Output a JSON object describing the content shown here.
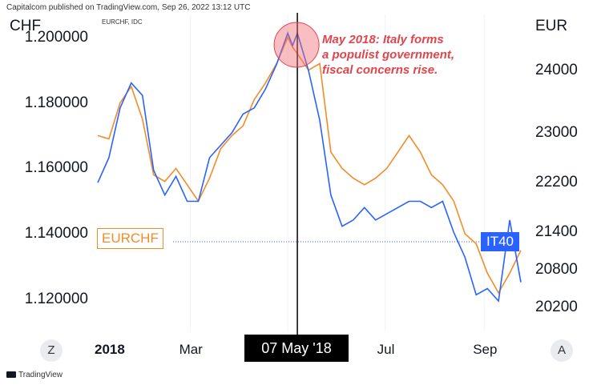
{
  "header": {
    "publisher": "Capitalcom published on TradingView.com, Sep 26, 2022 13:12 UTC",
    "symbol": "EURCHF, IDC"
  },
  "left_axis_unit": "CHF",
  "right_axis_unit": "EUR",
  "annotation": [
    "May 2018: Italy forms",
    "a populist government,",
    "fiscal concerns rise."
  ],
  "crosshair_date": "07 May '18",
  "nav": {
    "left": "Z",
    "right": "A"
  },
  "footer": {
    "brand": "TradingView"
  },
  "colors": {
    "eurchf": "#f28c28",
    "it40": "#2962ff",
    "annotation": "#e0454c",
    "crosshair": "#000000"
  },
  "chart_data": {
    "type": "line",
    "x_ticks": [
      "2018",
      "Mar",
      "May",
      "Jul",
      "Sep"
    ],
    "left_axis": {
      "ticks": [
        "1.200000",
        "1.180000",
        "1.160000",
        "1.140000",
        "1.120000"
      ],
      "range": [
        1.11,
        1.207
      ]
    },
    "right_axis": {
      "ticks": [
        "24000",
        "23000",
        "22200",
        "21400",
        "20800",
        "20200"
      ],
      "range": [
        19800,
        24900
      ]
    },
    "highlight_date": "2018-05-07",
    "series": [
      {
        "name": "EURCHF",
        "axis": "left",
        "last_value_label": "EURCHF",
        "x": [
          "2018-01-02",
          "2018-01-09",
          "2018-01-16",
          "2018-01-23",
          "2018-01-30",
          "2018-02-06",
          "2018-02-13",
          "2018-02-20",
          "2018-02-27",
          "2018-03-06",
          "2018-03-13",
          "2018-03-20",
          "2018-03-27",
          "2018-04-03",
          "2018-04-10",
          "2018-04-17",
          "2018-04-24",
          "2018-05-01",
          "2018-05-04",
          "2018-05-07",
          "2018-05-14",
          "2018-05-21",
          "2018-05-28",
          "2018-06-04",
          "2018-06-11",
          "2018-06-18",
          "2018-06-25",
          "2018-07-02",
          "2018-07-09",
          "2018-07-16",
          "2018-07-23",
          "2018-07-30",
          "2018-08-06",
          "2018-08-13",
          "2018-08-20",
          "2018-08-27",
          "2018-09-03",
          "2018-09-10",
          "2018-09-17",
          "2018-09-24"
        ],
        "values": [
          1.17,
          1.169,
          1.18,
          1.185,
          1.175,
          1.158,
          1.156,
          1.16,
          1.155,
          1.15,
          1.157,
          1.166,
          1.17,
          1.173,
          1.181,
          1.186,
          1.192,
          1.2,
          1.197,
          1.195,
          1.19,
          1.192,
          1.165,
          1.16,
          1.157,
          1.155,
          1.157,
          1.16,
          1.165,
          1.17,
          1.165,
          1.158,
          1.155,
          1.15,
          1.14,
          1.137,
          1.128,
          1.122,
          1.128,
          1.135
        ]
      },
      {
        "name": "IT40",
        "axis": "right",
        "last_value_label": "IT40",
        "x": [
          "2018-01-02",
          "2018-01-09",
          "2018-01-16",
          "2018-01-23",
          "2018-01-30",
          "2018-02-06",
          "2018-02-13",
          "2018-02-20",
          "2018-02-27",
          "2018-03-06",
          "2018-03-13",
          "2018-03-20",
          "2018-03-27",
          "2018-04-03",
          "2018-04-10",
          "2018-04-17",
          "2018-04-24",
          "2018-05-01",
          "2018-05-04",
          "2018-05-07",
          "2018-05-14",
          "2018-05-21",
          "2018-05-28",
          "2018-06-04",
          "2018-06-11",
          "2018-06-18",
          "2018-06-25",
          "2018-07-02",
          "2018-07-09",
          "2018-07-16",
          "2018-07-23",
          "2018-07-30",
          "2018-08-06",
          "2018-08-13",
          "2018-08-20",
          "2018-08-27",
          "2018-09-03",
          "2018-09-10",
          "2018-09-17",
          "2018-09-24"
        ],
        "values": [
          22200,
          22600,
          23400,
          23800,
          23600,
          22400,
          22000,
          22300,
          21900,
          21900,
          22600,
          22800,
          23000,
          23300,
          23400,
          23700,
          24100,
          24600,
          24400,
          24600,
          24000,
          23200,
          22000,
          21500,
          21600,
          21800,
          21600,
          21700,
          21800,
          21900,
          21900,
          21800,
          21900,
          21400,
          21000,
          20400,
          20500,
          20300,
          21600,
          20600
        ]
      }
    ]
  }
}
